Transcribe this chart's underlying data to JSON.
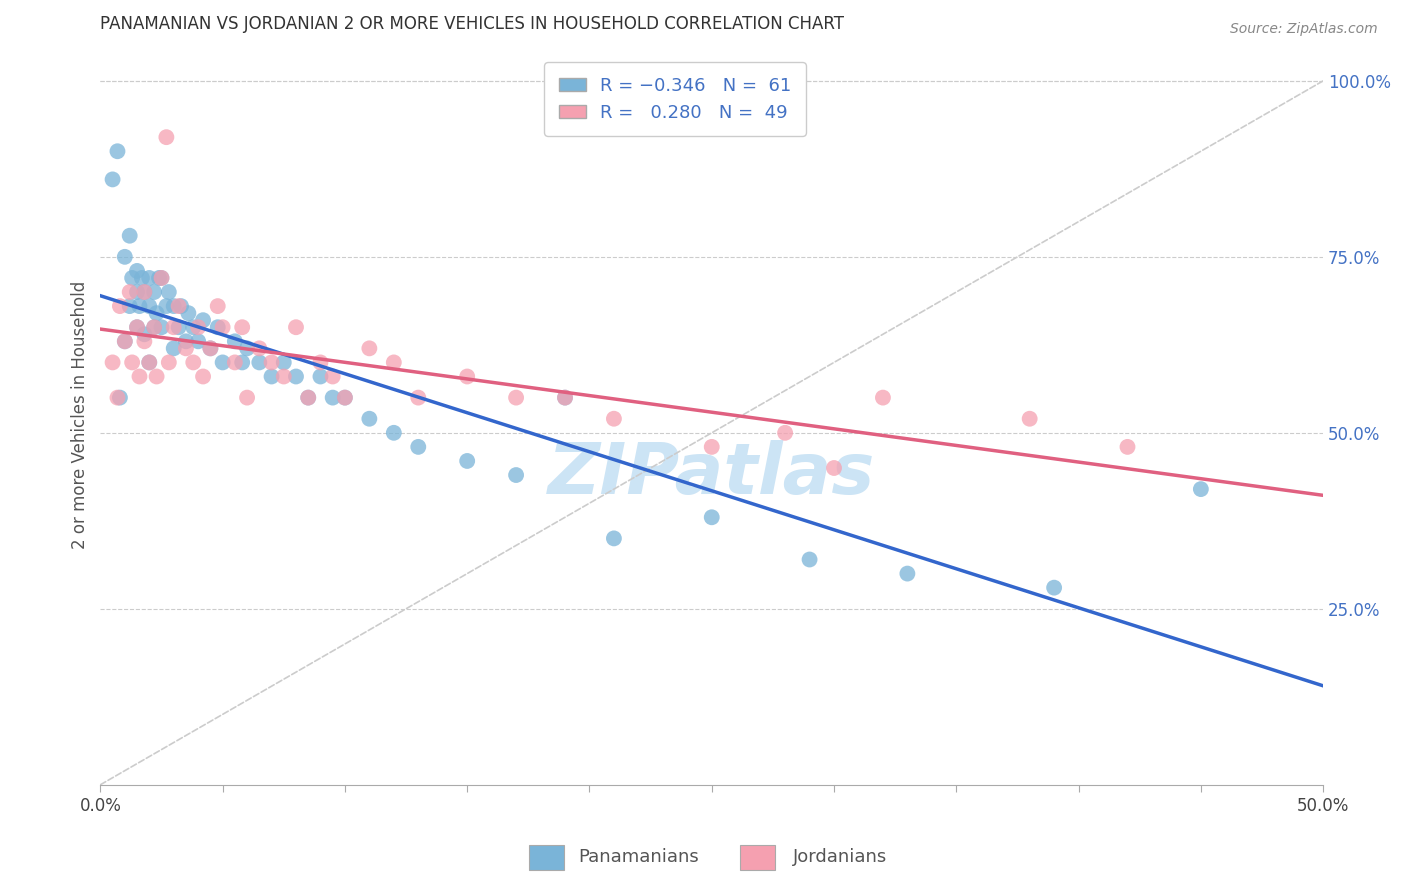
{
  "title": "PANAMANIAN VS JORDANIAN 2 OR MORE VEHICLES IN HOUSEHOLD CORRELATION CHART",
  "source": "Source: ZipAtlas.com",
  "xlabel_bottom": "Panamanians",
  "xlabel_bottom2": "Jordanians",
  "ylabel": "2 or more Vehicles in Household",
  "xlim": [
    0.0,
    0.5
  ],
  "ylim": [
    0.0,
    1.05
  ],
  "ytick_labels_right": [
    "25.0%",
    "50.0%",
    "75.0%",
    "100.0%"
  ],
  "ytick_vals_right": [
    0.25,
    0.5,
    0.75,
    1.0
  ],
  "color_pan": "#7ab4d8",
  "color_jor": "#f5a0b0",
  "trendline_pan_color": "#3366cc",
  "trendline_jor_color": "#e06080",
  "trendline_ref_color": "#cccccc",
  "watermark_color": "#cce4f5",
  "pan_x": [
    0.005,
    0.007,
    0.008,
    0.01,
    0.01,
    0.012,
    0.012,
    0.013,
    0.015,
    0.015,
    0.015,
    0.016,
    0.017,
    0.018,
    0.018,
    0.02,
    0.02,
    0.02,
    0.022,
    0.022,
    0.023,
    0.024,
    0.025,
    0.025,
    0.027,
    0.028,
    0.03,
    0.03,
    0.032,
    0.033,
    0.035,
    0.036,
    0.038,
    0.04,
    0.042,
    0.045,
    0.048,
    0.05,
    0.055,
    0.058,
    0.06,
    0.065,
    0.07,
    0.075,
    0.08,
    0.085,
    0.09,
    0.095,
    0.1,
    0.11,
    0.12,
    0.13,
    0.15,
    0.17,
    0.19,
    0.21,
    0.25,
    0.29,
    0.33,
    0.39,
    0.45
  ],
  "pan_y": [
    0.86,
    0.9,
    0.55,
    0.63,
    0.75,
    0.68,
    0.78,
    0.72,
    0.65,
    0.7,
    0.73,
    0.68,
    0.72,
    0.64,
    0.7,
    0.6,
    0.68,
    0.72,
    0.65,
    0.7,
    0.67,
    0.72,
    0.65,
    0.72,
    0.68,
    0.7,
    0.62,
    0.68,
    0.65,
    0.68,
    0.63,
    0.67,
    0.65,
    0.63,
    0.66,
    0.62,
    0.65,
    0.6,
    0.63,
    0.6,
    0.62,
    0.6,
    0.58,
    0.6,
    0.58,
    0.55,
    0.58,
    0.55,
    0.55,
    0.52,
    0.5,
    0.48,
    0.46,
    0.44,
    0.55,
    0.35,
    0.38,
    0.32,
    0.3,
    0.28,
    0.42
  ],
  "jor_x": [
    0.005,
    0.007,
    0.008,
    0.01,
    0.012,
    0.013,
    0.015,
    0.016,
    0.018,
    0.018,
    0.02,
    0.022,
    0.023,
    0.025,
    0.027,
    0.028,
    0.03,
    0.032,
    0.035,
    0.038,
    0.04,
    0.042,
    0.045,
    0.048,
    0.05,
    0.055,
    0.058,
    0.06,
    0.065,
    0.07,
    0.075,
    0.08,
    0.085,
    0.09,
    0.095,
    0.1,
    0.11,
    0.12,
    0.13,
    0.15,
    0.17,
    0.19,
    0.21,
    0.25,
    0.28,
    0.3,
    0.32,
    0.38,
    0.42
  ],
  "jor_y": [
    0.6,
    0.55,
    0.68,
    0.63,
    0.7,
    0.6,
    0.65,
    0.58,
    0.63,
    0.7,
    0.6,
    0.65,
    0.58,
    0.72,
    0.92,
    0.6,
    0.65,
    0.68,
    0.62,
    0.6,
    0.65,
    0.58,
    0.62,
    0.68,
    0.65,
    0.6,
    0.65,
    0.55,
    0.62,
    0.6,
    0.58,
    0.65,
    0.55,
    0.6,
    0.58,
    0.55,
    0.62,
    0.6,
    0.55,
    0.58,
    0.55,
    0.55,
    0.52,
    0.48,
    0.5,
    0.45,
    0.55,
    0.52,
    0.48
  ]
}
